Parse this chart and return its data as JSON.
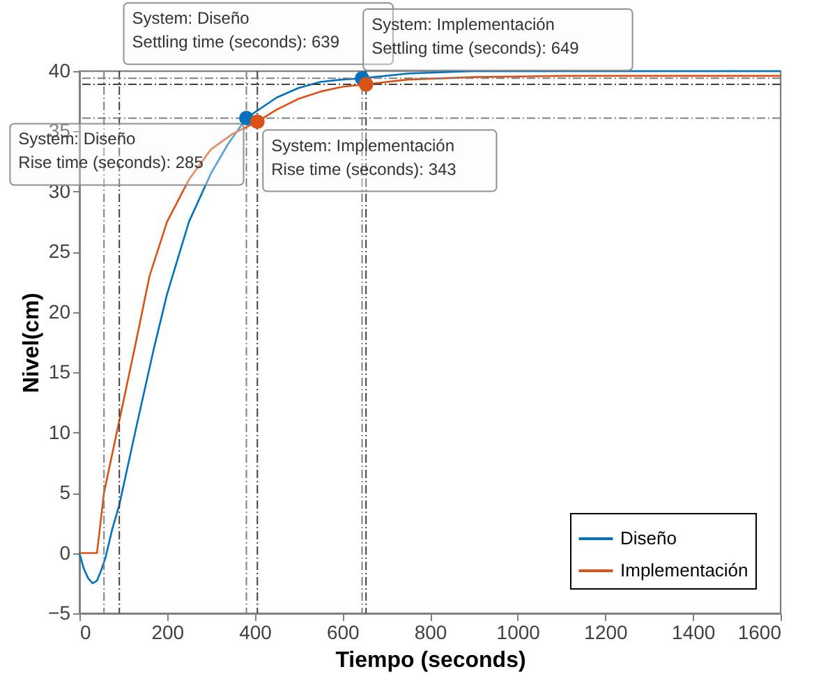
{
  "chart_data": {
    "type": "line",
    "xlabel": "Tiempo (seconds)",
    "ylabel": "Nivel(cm)",
    "xlim": [
      0,
      1600
    ],
    "xticks": [
      0,
      200,
      400,
      600,
      800,
      1000,
      1200,
      1400,
      1600
    ],
    "ylim": [
      -5,
      40
    ],
    "yticks": [
      -5,
      0,
      5,
      10,
      15,
      20,
      25,
      30,
      35,
      40
    ],
    "legend": "bottom right",
    "grid": false,
    "line_style": "solid",
    "series": [
      {
        "name": "Diseño",
        "color": "#0072bd",
        "x": [
          0,
          10,
          20,
          30,
          40,
          50,
          60,
          75,
          91,
          130,
          170,
          200,
          250,
          300,
          340,
          381,
          450,
          500,
          550,
          600,
          645,
          750,
          900,
          1100,
          1600
        ],
        "values": [
          0,
          -1.3,
          -2.1,
          -2.5,
          -2.3,
          -1.4,
          -0.3,
          2,
          4,
          10.5,
          17,
          21.5,
          27.5,
          31.5,
          34,
          36.1,
          37.8,
          38.6,
          39.1,
          39.3,
          39.4,
          39.8,
          40,
          40,
          40
        ]
      },
      {
        "name": "Implementación",
        "color": "#d95319",
        "x": [
          0,
          40,
          56,
          91,
          126,
          160,
          200,
          250,
          300,
          350,
          406,
          450,
          500,
          550,
          600,
          654,
          750,
          900,
          1100,
          1600
        ],
        "values": [
          0,
          0,
          5,
          11,
          17,
          23,
          27.5,
          31,
          33.5,
          34.8,
          35.8,
          36.8,
          37.7,
          38.3,
          38.7,
          38.9,
          39.3,
          39.5,
          39.6,
          39.6
        ]
      },
      {
        "type": "scatter",
        "color": "#0072bd",
        "marker": "circle",
        "x": [
          381,
          645
        ],
        "values": [
          36.1,
          39.4
        ]
      },
      {
        "type": "scatter",
        "color": "#d95319",
        "marker": "circle",
        "x": [
          406,
          654
        ],
        "values": [
          35.8,
          38.9
        ]
      }
    ],
    "ref_lines": [
      {
        "axis": "x",
        "value": 56,
        "color": "#808080",
        "line_style": "dashed"
      },
      {
        "axis": "x",
        "value": 91,
        "color": "#404040",
        "line_style": "dashed"
      },
      {
        "axis": "x",
        "value": 381,
        "color": "#808080",
        "line_style": "dashed"
      },
      {
        "axis": "x",
        "value": 406,
        "color": "#404040",
        "line_style": "dashed"
      },
      {
        "axis": "x",
        "value": 645,
        "color": "#808080",
        "line_style": "dashed"
      },
      {
        "axis": "x",
        "value": 654,
        "color": "#404040",
        "line_style": "dashed"
      },
      {
        "axis": "y",
        "value": 36.1,
        "color": "#808080",
        "line_style": "dashed"
      },
      {
        "axis": "y",
        "value": 39.4,
        "color": "#808080",
        "line_style": "dashed"
      },
      {
        "axis": "y",
        "value": 38.9,
        "color": "#404040",
        "line_style": "dashed"
      }
    ],
    "annotations": [
      {
        "text": "System: Diseño\nSettling time (seconds): 639",
        "x": 645,
        "y": 39.4
      },
      {
        "text": "System: Implementación\nSettling time (seconds): 649",
        "x": 654,
        "y": 38.9
      },
      {
        "text": "System: Diseño\nRise time (seconds): 285",
        "x": 381,
        "y": 36.1
      },
      {
        "text": "System: Implementación\nRise time (seconds): 343",
        "x": 406,
        "y": 35.8
      }
    ]
  }
}
